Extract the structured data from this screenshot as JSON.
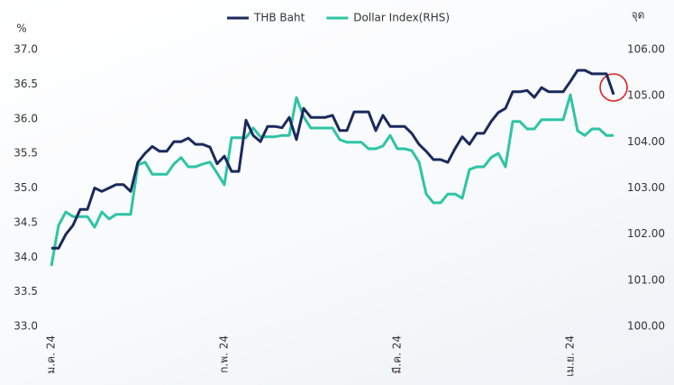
{
  "chart_data": {
    "type": "line",
    "y_label": "%",
    "y2_label": "จุด",
    "categories": [
      "ม.ค. 24",
      null,
      null,
      null,
      null,
      null,
      null,
      null,
      null,
      null,
      null,
      null,
      null,
      null,
      null,
      null,
      null,
      null,
      null,
      null,
      null,
      null,
      null,
      null,
      "ก.พ. 24",
      null,
      null,
      null,
      null,
      null,
      null,
      null,
      null,
      null,
      null,
      null,
      null,
      null,
      null,
      null,
      null,
      null,
      null,
      null,
      null,
      null,
      null,
      null,
      "มี.ค. 24",
      null,
      null,
      null,
      null,
      null,
      null,
      null,
      null,
      null,
      null,
      null,
      null,
      null,
      null,
      null,
      null,
      null,
      null,
      null,
      null,
      null,
      null,
      null,
      "เม.ย. 24",
      null,
      null,
      null,
      null,
      null,
      null
    ],
    "series": [
      {
        "name": "THB Baht",
        "color": "#1b2a5c",
        "values": [
          34.13,
          34.13,
          34.33,
          34.46,
          34.69,
          34.69,
          35.0,
          34.95,
          35.0,
          35.05,
          35.05,
          34.95,
          35.37,
          35.5,
          35.6,
          35.53,
          35.53,
          35.67,
          35.67,
          35.72,
          35.63,
          35.63,
          35.59,
          35.35,
          35.46,
          35.24,
          35.24,
          35.98,
          35.76,
          35.67,
          35.89,
          35.89,
          35.87,
          36.02,
          35.7,
          36.15,
          36.02,
          36.02,
          36.02,
          36.05,
          35.83,
          35.83,
          36.1,
          36.1,
          36.1,
          35.83,
          36.05,
          35.89,
          35.89,
          35.89,
          35.79,
          35.63,
          35.53,
          35.41,
          35.41,
          35.37,
          35.57,
          35.74,
          35.63,
          35.79,
          35.79,
          35.96,
          36.09,
          36.15,
          36.39,
          36.39,
          36.41,
          36.31,
          36.45,
          36.39,
          36.39,
          36.39,
          36.54,
          36.7,
          36.7,
          36.65,
          36.65,
          36.65,
          36.35
        ]
      },
      {
        "name": "Dollar Index(RHS)",
        "color": "#2ec4a5",
        "axis": "y2",
        "values": [
          101.31,
          102.19,
          102.48,
          102.38,
          102.38,
          102.38,
          102.15,
          102.48,
          102.33,
          102.43,
          102.43,
          102.43,
          103.5,
          103.56,
          103.3,
          103.3,
          103.3,
          103.52,
          103.66,
          103.46,
          103.46,
          103.52,
          103.56,
          103.32,
          103.07,
          104.09,
          104.09,
          104.09,
          104.3,
          104.11,
          104.11,
          104.11,
          104.14,
          104.14,
          104.96,
          104.54,
          104.3,
          104.3,
          104.3,
          104.3,
          104.05,
          103.99,
          103.99,
          103.99,
          103.85,
          103.85,
          103.91,
          104.14,
          103.85,
          103.85,
          103.81,
          103.56,
          102.87,
          102.68,
          102.68,
          102.87,
          102.87,
          102.78,
          103.4,
          103.46,
          103.46,
          103.66,
          103.75,
          103.46,
          104.44,
          104.44,
          104.28,
          104.28,
          104.48,
          104.48,
          104.48,
          104.48,
          105.02,
          104.24,
          104.14,
          104.28,
          104.28,
          104.14,
          104.14
        ]
      }
    ],
    "ylim": [
      33,
      37
    ],
    "yticks": [
      {
        "value": 33,
        "label": "33.0"
      },
      {
        "value": 33.5,
        "label": "33.5"
      },
      {
        "value": 34,
        "label": "34.0"
      },
      {
        "value": 34.5,
        "label": "34.5"
      },
      {
        "value": 35,
        "label": "35.0"
      },
      {
        "value": 35.5,
        "label": "35.5"
      },
      {
        "value": 36,
        "label": "36.0"
      },
      {
        "value": 36.5,
        "label": "36.5"
      },
      {
        "value": 37,
        "label": "37.0"
      }
    ],
    "y2lim": [
      100,
      106
    ],
    "y2ticks": [
      {
        "value": 100,
        "label": "100.00"
      },
      {
        "value": 101,
        "label": "101.00"
      },
      {
        "value": 102,
        "label": "102.00"
      },
      {
        "value": 103,
        "label": "103.00"
      },
      {
        "value": 104,
        "label": "104.00"
      },
      {
        "value": 105,
        "label": "105.00"
      },
      {
        "value": 106,
        "label": "106.00"
      }
    ],
    "grid": false
  }
}
